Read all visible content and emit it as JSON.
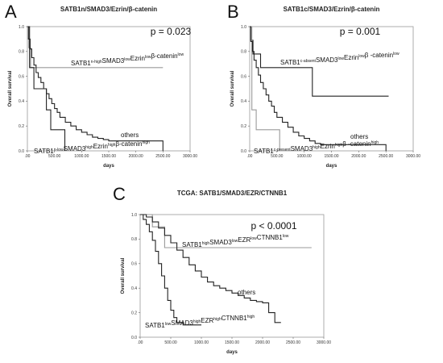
{
  "chart_data": [
    {
      "panel_label": "A",
      "type": "line",
      "title": "SATB1n/SMAD3/Ezrin/β-catenin",
      "xlabel": "days",
      "ylabel": "Overall survival",
      "xlim": [
        0,
        3000
      ],
      "ylim": [
        0,
        1.0
      ],
      "xticks": [
        ".00",
        "500.00",
        "1000.00",
        "1500.00",
        "2000.00",
        "2500.00",
        "3000.00"
      ],
      "yticks": [
        "0.0",
        "0.2",
        "0.4",
        "0.6",
        "0.8",
        "1.0"
      ],
      "p_value": "p = 0.023",
      "series": [
        {
          "annotation": [
            {
              "text": "SATB1"
            },
            {
              "text": "n-high",
              "sup": true
            },
            {
              "text": "SMAD3"
            },
            {
              "text": "low",
              "sup": true
            },
            {
              "text": "Ezrin"
            },
            {
              "text": "low",
              "sup": true
            },
            {
              "text": "β-catenin"
            },
            {
              "text": "low",
              "sup": true
            }
          ],
          "color": "#9a9a9a",
          "x": [
            0,
            25,
            60,
            2500
          ],
          "y": [
            1.0,
            0.83,
            0.67,
            0.67
          ]
        },
        {
          "annotation": [
            {
              "text": "SATB1"
            },
            {
              "text": "n-low",
              "sup": true
            },
            {
              "text": "SMAD3"
            },
            {
              "text": "high",
              "sup": true
            },
            {
              "text": "Ezrin"
            },
            {
              "text": "high",
              "sup": true
            },
            {
              "text": "β-catenin"
            },
            {
              "text": "high",
              "sup": true
            }
          ],
          "color": "#222222",
          "x": [
            0,
            40,
            120,
            350,
            430,
            560,
            690
          ],
          "y": [
            1.0,
            0.67,
            0.5,
            0.33,
            0.17,
            0.17,
            0.0
          ]
        },
        {
          "annotation": [
            {
              "text": "others"
            }
          ],
          "color": "#222222",
          "x": [
            0,
            20,
            50,
            80,
            120,
            160,
            200,
            250,
            300,
            350,
            400,
            450,
            500,
            550,
            600,
            700,
            800,
            900,
            1000,
            1100,
            1200,
            1300,
            1400,
            1500,
            2000,
            2500
          ],
          "y": [
            1.0,
            0.9,
            0.82,
            0.75,
            0.69,
            0.63,
            0.59,
            0.55,
            0.5,
            0.46,
            0.42,
            0.38,
            0.34,
            0.31,
            0.27,
            0.23,
            0.2,
            0.17,
            0.15,
            0.13,
            0.11,
            0.1,
            0.09,
            0.08,
            0.08,
            0.0
          ]
        }
      ]
    },
    {
      "panel_label": "B",
      "type": "line",
      "title": "SATB1c/SMAD3/Ezrin/β-catenin",
      "xlabel": "days",
      "ylabel": "Overall survival",
      "xlim": [
        0,
        3000
      ],
      "ylim": [
        0,
        1.0
      ],
      "xticks": [
        ".00",
        "500.00",
        "1000.00",
        "1500.00",
        "2000.00",
        "2500.00",
        "3000.00"
      ],
      "yticks": [
        "0.0",
        "0.2",
        "0.4",
        "0.6",
        "0.8",
        "1.0"
      ],
      "p_value": "p = 0.001",
      "series": [
        {
          "annotation": [
            {
              "text": "SATB1"
            },
            {
              "text": "c-absent",
              "sup": true
            },
            {
              "text": "SMAD3"
            },
            {
              "text": "low",
              "sup": true
            },
            {
              "text": "Ezrin"
            },
            {
              "text": "low",
              "sup": true
            },
            {
              "text": "β -catenin"
            },
            {
              "text": "low",
              "sup": true
            }
          ],
          "color": "#222222",
          "x": [
            0,
            20,
            60,
            200,
            1150,
            2550
          ],
          "y": [
            1.0,
            0.89,
            0.78,
            0.67,
            0.44,
            0.44
          ]
        },
        {
          "annotation": [
            {
              "text": "SATB1"
            },
            {
              "text": "c-present",
              "sup": true
            },
            {
              "text": "SMAD3"
            },
            {
              "text": "high",
              "sup": true
            },
            {
              "text": "Ezrin"
            },
            {
              "text": "high",
              "sup": true
            },
            {
              "text": "β -catenin"
            },
            {
              "text": "high",
              "sup": true
            }
          ],
          "color": "#9a9a9a",
          "x": [
            0,
            40,
            120,
            550
          ],
          "y": [
            1.0,
            0.33,
            0.17,
            0.0
          ]
        },
        {
          "annotation": [
            {
              "text": "others"
            }
          ],
          "color": "#222222",
          "x": [
            0,
            20,
            50,
            80,
            120,
            160,
            200,
            250,
            300,
            350,
            400,
            450,
            500,
            600,
            700,
            800,
            900,
            1000,
            1100,
            1200,
            1300,
            1500,
            2000,
            2500
          ],
          "y": [
            1.0,
            0.88,
            0.8,
            0.73,
            0.67,
            0.61,
            0.55,
            0.5,
            0.45,
            0.4,
            0.36,
            0.31,
            0.27,
            0.23,
            0.19,
            0.15,
            0.12,
            0.1,
            0.08,
            0.06,
            0.05,
            0.05,
            0.05,
            0.0
          ]
        }
      ]
    },
    {
      "panel_label": "C",
      "type": "line",
      "title": "TCGA: SATB1/SMAD3/EZR/CTNNB1",
      "xlabel": "days",
      "ylabel": "Overall survival",
      "xlim": [
        0,
        3000
      ],
      "ylim": [
        0,
        1.0
      ],
      "xticks": [
        ".00",
        "500.00",
        "1000.00",
        "1500.00",
        "2000.00",
        "2500.00",
        "3000.00"
      ],
      "yticks": [
        "0.0",
        "0.2",
        "0.4",
        "0.6",
        "0.8",
        "1.0"
      ],
      "p_value": "p < 0.0001",
      "series": [
        {
          "annotation": [
            {
              "text": "SATB1"
            },
            {
              "text": "high",
              "sup": true
            },
            {
              "text": "SMAD3"
            },
            {
              "text": "low",
              "sup": true
            },
            {
              "text": "EZR"
            },
            {
              "text": "low",
              "sup": true
            },
            {
              "text": "CTNNB1"
            },
            {
              "text": "low",
              "sup": true
            }
          ],
          "color": "#9a9a9a",
          "x": [
            0,
            100,
            200,
            300,
            400,
            2800
          ],
          "y": [
            1.0,
            1.0,
            0.9,
            0.9,
            0.73,
            0.73
          ]
        },
        {
          "annotation": [
            {
              "text": "SATB1"
            },
            {
              "text": "low",
              "sup": true
            },
            {
              "text": "SMAD3"
            },
            {
              "text": "high",
              "sup": true
            },
            {
              "text": "EZR"
            },
            {
              "text": "high",
              "sup": true
            },
            {
              "text": "CTNNB1"
            },
            {
              "text": "high",
              "sup": true
            }
          ],
          "color": "#222222",
          "x": [
            0,
            50,
            100,
            150,
            200,
            250,
            300,
            350,
            400,
            450,
            500,
            550,
            600,
            700,
            800,
            900,
            1000
          ],
          "y": [
            1.0,
            0.96,
            0.92,
            0.86,
            0.79,
            0.7,
            0.6,
            0.5,
            0.4,
            0.3,
            0.22,
            0.16,
            0.12,
            0.1,
            0.1,
            0.1,
            0.1
          ]
        },
        {
          "annotation": [
            {
              "text": "others"
            }
          ],
          "color": "#222222",
          "x": [
            0,
            100,
            200,
            300,
            400,
            500,
            600,
            700,
            800,
            900,
            1000,
            1100,
            1200,
            1300,
            1400,
            1500,
            1600,
            1700,
            1800,
            1900,
            2000,
            2100,
            2200,
            2300
          ],
          "y": [
            1.0,
            0.98,
            0.94,
            0.89,
            0.83,
            0.77,
            0.71,
            0.65,
            0.59,
            0.54,
            0.49,
            0.45,
            0.42,
            0.4,
            0.38,
            0.36,
            0.34,
            0.32,
            0.3,
            0.29,
            0.28,
            0.2,
            0.12,
            0.12
          ]
        }
      ]
    }
  ]
}
